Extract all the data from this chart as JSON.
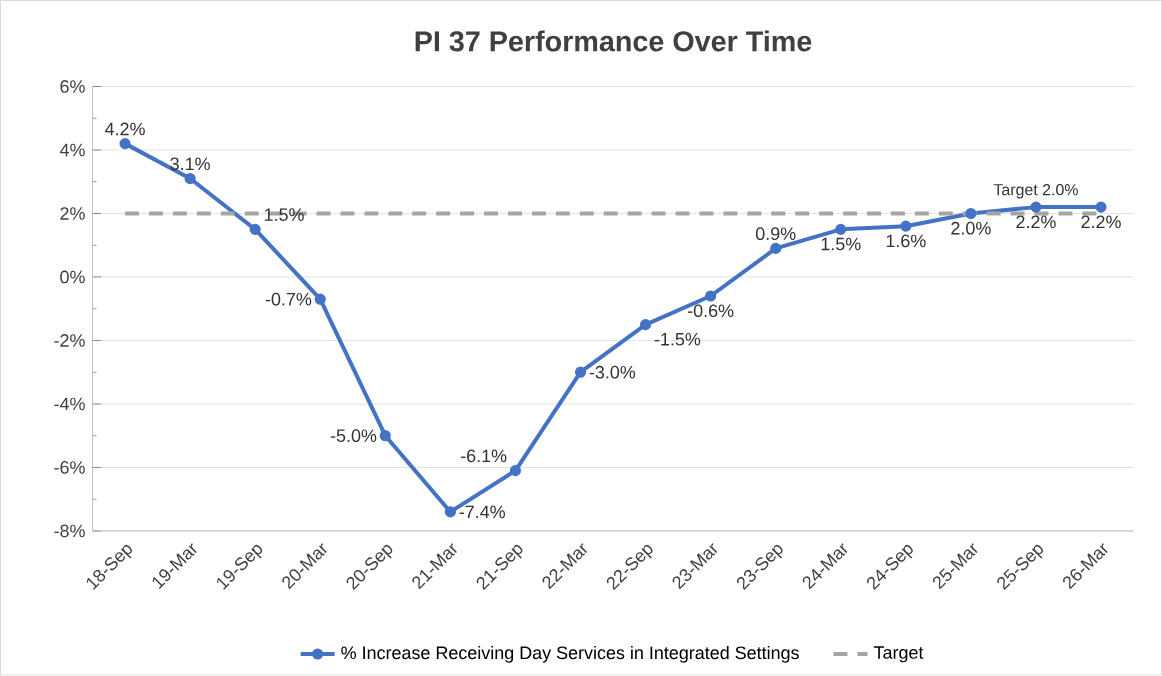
{
  "chart_data": {
    "type": "line",
    "title": "PI 37 Performance Over Time",
    "categories": [
      "18-Sep",
      "19-Mar",
      "19-Sep",
      "20-Mar",
      "20-Sep",
      "21-Mar",
      "21-Sep",
      "22-Mar",
      "22-Sep",
      "23-Mar",
      "23-Sep",
      "24-Mar",
      "24-Sep",
      "25-Mar",
      "25-Sep",
      "26-Mar"
    ],
    "series": [
      {
        "name": "% Increase Receiving Day Services in Integrated Settings",
        "color": "#4472c4",
        "marker": "circle",
        "line_style": "solid",
        "values": [
          4.2,
          3.1,
          1.5,
          -0.7,
          -5.0,
          -7.4,
          -6.1,
          -3.0,
          -1.5,
          -0.6,
          0.9,
          1.5,
          1.6,
          2.0,
          2.2,
          2.2
        ],
        "value_labels": [
          "4.2%",
          "3.1%",
          "1.5%",
          "-0.7%",
          "-5.0%",
          "-7.4%",
          "-6.1%",
          "-3.0%",
          "-1.5%",
          "-0.6%",
          "0.9%",
          "1.5%",
          "1.6%",
          "2.0%",
          "2.2%",
          "2.2%"
        ]
      },
      {
        "name": "Target",
        "color": "#a5a5a5",
        "marker": "none",
        "line_style": "dashed",
        "values": [
          2.0,
          2.0,
          2.0,
          2.0,
          2.0,
          2.0,
          2.0,
          2.0,
          2.0,
          2.0,
          2.0,
          2.0,
          2.0,
          2.0,
          2.0,
          2.0
        ]
      }
    ],
    "annotations": [
      {
        "text": "Target 2.0%",
        "x": "25-Sep",
        "y": 2.0
      }
    ],
    "ylim": [
      -8,
      6
    ],
    "yticks": [
      {
        "value": -8,
        "label": "-8%"
      },
      {
        "value": -6,
        "label": "-6%"
      },
      {
        "value": -4,
        "label": "-4%"
      },
      {
        "value": -2,
        "label": "-2%"
      },
      {
        "value": 0,
        "label": "0%"
      },
      {
        "value": 2,
        "label": "2%"
      },
      {
        "value": 4,
        "label": "4%"
      },
      {
        "value": 6,
        "label": "6%"
      }
    ],
    "grid": "y",
    "legend": "bottom"
  }
}
